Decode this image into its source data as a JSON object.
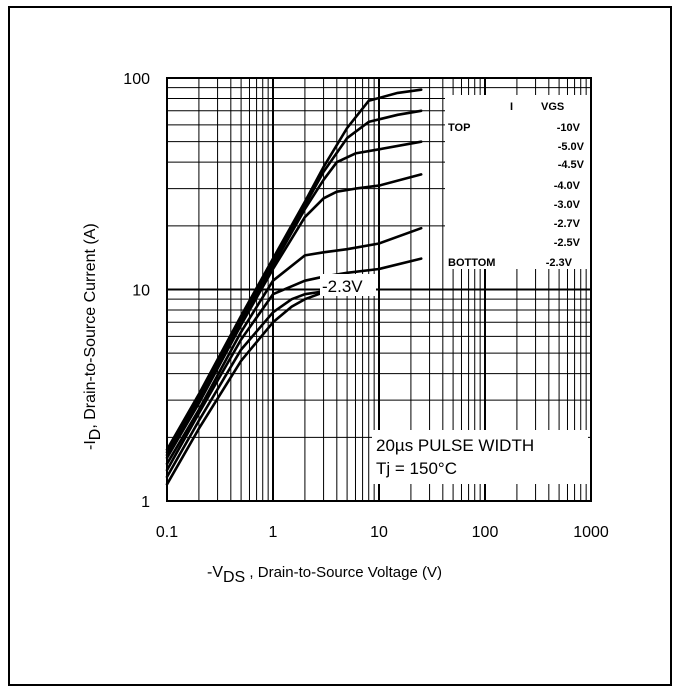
{
  "chart_data": {
    "type": "line",
    "x_scale": "log",
    "y_scale": "log",
    "xlim": [
      0.1,
      1000
    ],
    "ylim": [
      1,
      100
    ],
    "x_ticks": [
      "0.1",
      "1",
      "10",
      "100",
      "1000"
    ],
    "y_ticks": [
      "1",
      "10",
      "100"
    ],
    "xlabel": {
      "prefix": "-V",
      "sub": "DS",
      "suffix": " , Drain-to-Source Voltage (V)"
    },
    "ylabel": {
      "prefix": "-I",
      "sub": "D",
      "suffix": ",  Drain-to-Source Current (A)"
    },
    "grid": true,
    "legend": {
      "header": "VGS",
      "top_label": "TOP",
      "bottom_label": "BOTTOM",
      "entries": [
        "-10V",
        "-5.0V",
        "-4.5V",
        "-4.0V",
        "-3.0V",
        "-2.7V",
        "-2.5V",
        "-2.3V"
      ],
      "placement": "top-right"
    },
    "annotations": {
      "curve_label": "-2.3V",
      "pulse": "20µs PULSE  WIDTH",
      "temp": "Tj = 150°C"
    },
    "series": [
      {
        "name": "-10V",
        "x": [
          0.1,
          0.2,
          0.5,
          1,
          2,
          3,
          5,
          8,
          15,
          25
        ],
        "y": [
          1.75,
          3.2,
          7.5,
          14,
          26,
          38,
          58,
          78,
          85,
          88
        ]
      },
      {
        "name": "-5.0V",
        "x": [
          0.1,
          0.2,
          0.5,
          1,
          2,
          3,
          5,
          8,
          15,
          25
        ],
        "y": [
          1.7,
          3.1,
          7.2,
          13.5,
          25,
          36,
          52,
          62,
          67,
          70
        ]
      },
      {
        "name": "-4.5V",
        "x": [
          0.1,
          0.2,
          0.5,
          1,
          2,
          3,
          4,
          6,
          10,
          25
        ],
        "y": [
          1.65,
          3.0,
          7.0,
          13,
          24,
          33,
          40,
          44,
          46,
          50
        ]
      },
      {
        "name": "-4.0V",
        "x": [
          0.1,
          0.2,
          0.5,
          1,
          2,
          3,
          4,
          6,
          10,
          25
        ],
        "y": [
          1.6,
          2.9,
          6.8,
          12.5,
          22,
          27,
          29,
          30,
          31,
          35
        ]
      },
      {
        "name": "-3.0V",
        "x": [
          0.1,
          0.2,
          0.5,
          1,
          2,
          3,
          5,
          10,
          25
        ],
        "y": [
          1.5,
          2.7,
          6.3,
          11,
          14.5,
          15,
          15.5,
          16.5,
          19.5
        ]
      },
      {
        "name": "-2.7V",
        "x": [
          0.1,
          0.2,
          0.5,
          1,
          2,
          3,
          5,
          10,
          25
        ],
        "y": [
          1.4,
          2.6,
          5.8,
          9.5,
          11,
          11.5,
          12,
          12.5,
          14
        ]
      },
      {
        "name": "-2.5V",
        "x": [
          0.1,
          0.2,
          0.5,
          1,
          1.5,
          2,
          3
        ],
        "y": [
          1.3,
          2.4,
          5.2,
          7.8,
          9,
          9.5,
          9.8
        ]
      },
      {
        "name": "-2.3V",
        "x": [
          0.1,
          0.2,
          0.5,
          1,
          1.5,
          2,
          3
        ],
        "y": [
          1.2,
          2.2,
          4.6,
          7.0,
          8.3,
          9.0,
          9.7
        ]
      }
    ]
  }
}
